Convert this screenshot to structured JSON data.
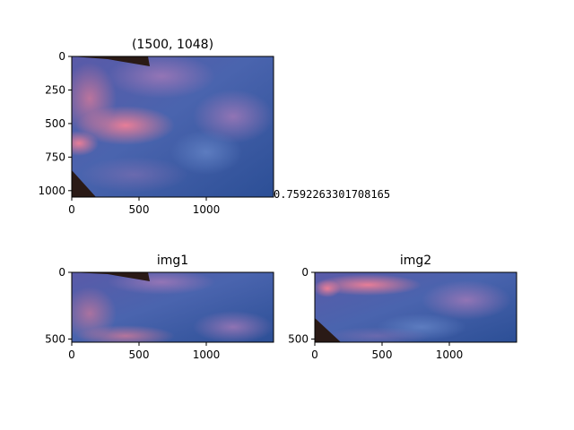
{
  "chart_data": [
    {
      "type": "image",
      "title": "(1500, 1048)",
      "xlim": [
        0,
        1500
      ],
      "ylim": [
        1048,
        0
      ],
      "xticks": [
        "0",
        "500",
        "1000"
      ],
      "xtick_values": [
        0,
        500,
        1000
      ],
      "yticks": [
        "0",
        "250",
        "500",
        "750",
        "1000"
      ],
      "ytick_values": [
        0,
        250,
        500,
        750,
        1000
      ],
      "annotation": "0.7592263301708165",
      "content": "sky with pink clouds, dark roof corners"
    },
    {
      "type": "image",
      "title": "img1",
      "xlim": [
        0,
        1500
      ],
      "ylim": [
        524,
        0
      ],
      "xticks": [
        "0",
        "500",
        "1000"
      ],
      "xtick_values": [
        0,
        500,
        1000
      ],
      "yticks": [
        "0",
        "500"
      ],
      "ytick_values": [
        0,
        500
      ],
      "content": "top half of sky image"
    },
    {
      "type": "image",
      "title": "img2",
      "xlim": [
        0,
        1500
      ],
      "ylim": [
        524,
        0
      ],
      "xticks": [
        "0",
        "500",
        "1000"
      ],
      "xtick_values": [
        0,
        500,
        1000
      ],
      "yticks": [
        "0",
        "500"
      ],
      "ytick_values": [
        0,
        500
      ],
      "content": "bottom half of sky image"
    }
  ],
  "colors": {
    "sky_dark": "#2b4f94",
    "sky_mid": "#4a68ae",
    "cloud_pink": "#e07896",
    "cloud_purple": "#8a6aa8",
    "roof": "#2a1a16"
  }
}
